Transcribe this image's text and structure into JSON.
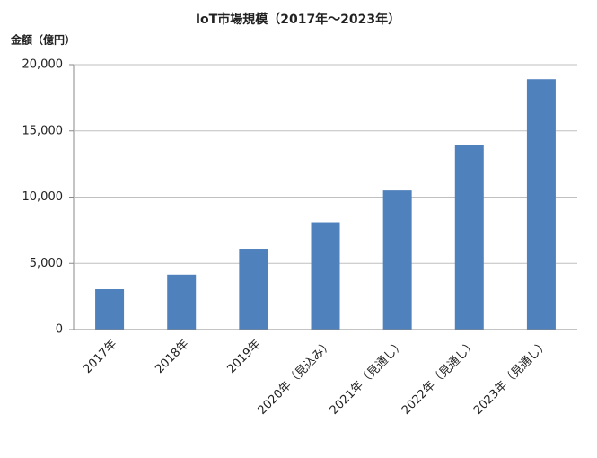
{
  "chart_data": {
    "type": "bar",
    "title": "IoT市場規模（2017年～2023年）",
    "y_label": "金額（億円）",
    "categories": [
      "2017年",
      "2018年",
      "2019年",
      "2020年（見込み）",
      "2021年（見通し）",
      "2022年（見通し）",
      "2023年（見通し）"
    ],
    "values": [
      3050,
      4150,
      6100,
      8100,
      10500,
      13900,
      18900
    ],
    "color": "#4f81bd",
    "ylim": [
      0,
      20000
    ],
    "yticks": [
      0,
      {
        "value": 5000,
        "label": "5,000"
      },
      {
        "value": 10000,
        "label": "10,000"
      },
      {
        "value": 15000,
        "label": "15,000"
      },
      {
        "value": 20000,
        "label": "20,000"
      }
    ],
    "grid": true
  }
}
